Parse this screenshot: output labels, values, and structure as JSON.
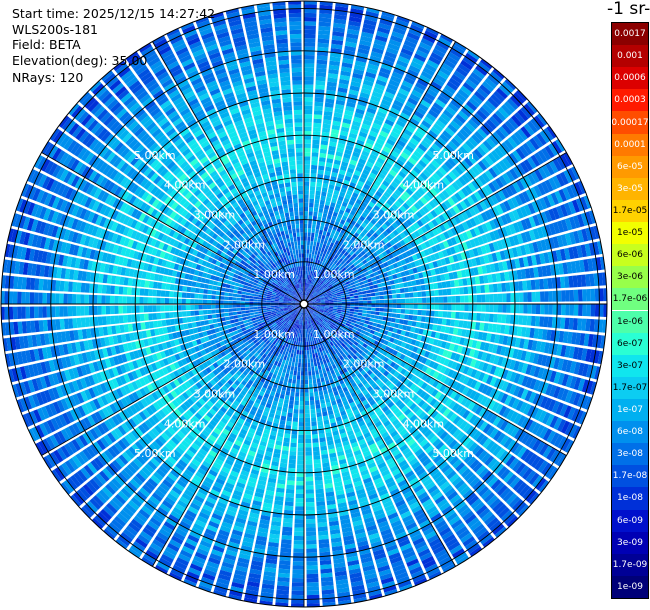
{
  "info": {
    "start_time": "Start time: 2025/12/15 14:27:42",
    "instrument": "WLS200s-181",
    "field": "Field: BETA",
    "elevation": "Elevation(deg): 35.00",
    "nrays": "NRays: 120"
  },
  "colorbar": {
    "unit_title": "-1 sr-",
    "labels": [
      "0.0017",
      "0.001",
      "0.0006",
      "0.0003",
      "0.00017",
      "0.0001",
      "6e-05",
      "3e-05",
      "1.7e-05",
      "1e-05",
      "6e-06",
      "3e-06",
      "1.7e-06",
      "1e-06",
      "6e-07",
      "3e-07",
      "1.7e-07",
      "1e-07",
      "6e-08",
      "3e-08",
      "1.7e-08",
      "1e-08",
      "6e-09",
      "3e-09",
      "1.7e-09",
      "1e-09"
    ],
    "colors": [
      "#8b0000",
      "#b40000",
      "#dc0000",
      "#ff1a00",
      "#ff4d00",
      "#ff7a00",
      "#ff9a00",
      "#ffb400",
      "#ffd200",
      "#f2ff00",
      "#c8ff1e",
      "#98ff4a",
      "#70ff80",
      "#4dffaa",
      "#2affd4",
      "#10e6ee",
      "#0ccdf2",
      "#00b0f0",
      "#0090ee",
      "#0070e8",
      "#0050e0",
      "#0030d8",
      "#0010cc",
      "#0000b4",
      "#000096",
      "#000078"
    ]
  },
  "range_rings": {
    "labels": [
      "1.00km",
      "2.00km",
      "3.00km",
      "4.00km",
      "5.00km"
    ]
  }
}
